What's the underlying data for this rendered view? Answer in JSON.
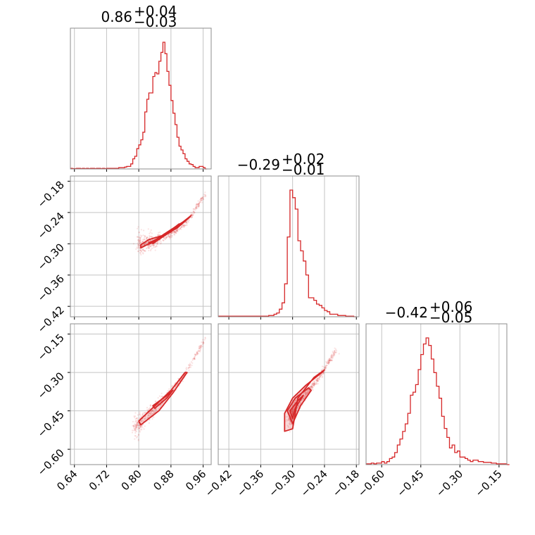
{
  "colors": {
    "accent": "#d62728",
    "grid": "#c4c4c4",
    "frame": "#8c8c8c"
  },
  "chart_data": [
    {
      "type": "histogram",
      "panel": "diag-0",
      "title": {
        "median": "0.86",
        "plus": "+0.04",
        "minus": "−0.03"
      },
      "x": [
        0.63,
        0.635,
        0.64,
        0.645,
        0.65,
        0.655,
        0.66,
        0.665,
        0.67,
        0.675,
        0.68,
        0.685,
        0.69,
        0.695,
        0.7,
        0.705,
        0.71,
        0.715,
        0.72,
        0.725,
        0.73,
        0.735,
        0.74,
        0.745,
        0.75,
        0.755,
        0.76,
        0.765,
        0.77,
        0.775,
        0.78,
        0.785,
        0.79,
        0.795,
        0.8,
        0.805,
        0.81,
        0.815,
        0.82,
        0.825,
        0.83,
        0.835,
        0.84,
        0.845,
        0.85,
        0.855,
        0.86,
        0.865,
        0.87,
        0.875,
        0.88,
        0.885,
        0.89,
        0.895,
        0.9,
        0.905,
        0.91,
        0.915,
        0.92,
        0.925,
        0.93,
        0.935,
        0.94,
        0.945,
        0.95,
        0.955,
        0.96,
        0.965
      ],
      "values": [
        0.5,
        0.3,
        0.3,
        0.5,
        0.5,
        0.3,
        0.5,
        0.3,
        0.5,
        0.3,
        0.5,
        0.5,
        0.3,
        0.5,
        0.5,
        0.3,
        0.5,
        0.3,
        0.5,
        0.5,
        0.5,
        0.5,
        0.5,
        0.5,
        1,
        1,
        1,
        1.5,
        2,
        2,
        4,
        8,
        10,
        16,
        19,
        23,
        29,
        45,
        55,
        60,
        60,
        73,
        76,
        75,
        85,
        92,
        100,
        91,
        77,
        66,
        54,
        44,
        35,
        25,
        18,
        15,
        12,
        8,
        6,
        4,
        3.5,
        2,
        1,
        1,
        2,
        2,
        1,
        0
      ],
      "xlim": [
        0.63,
        0.98
      ],
      "xticks": [
        0.64,
        0.72,
        0.8,
        0.88,
        0.96
      ],
      "xtick_labels": [
        "0.64",
        "0.72",
        "0.80",
        "0.88",
        "0.96"
      ]
    },
    {
      "type": "scatter-contour",
      "panel": "row1-col0",
      "x_param": 0,
      "y_param": 1,
      "xlim": [
        0.63,
        0.98
      ],
      "ylim": [
        -0.44,
        -0.17
      ],
      "yticks": [
        -0.18,
        -0.24,
        -0.3,
        -0.36,
        -0.42
      ],
      "ytick_labels": [
        "−0.18",
        "−0.24",
        "−0.30",
        "−0.36",
        "−0.42"
      ],
      "ridge": {
        "x": [
          0.8,
          0.84,
          0.88,
          0.92,
          0.965
        ],
        "y": [
          -0.302,
          -0.296,
          -0.282,
          -0.258,
          -0.205
        ]
      },
      "contour_levels": [
        {
          "x": [
            0.805,
            0.825,
            0.86,
            0.895,
            0.925,
            0.93,
            0.91,
            0.87,
            0.835,
            0.805
          ],
          "y": [
            -0.302,
            -0.292,
            -0.284,
            -0.27,
            -0.25,
            -0.246,
            -0.258,
            -0.278,
            -0.296,
            -0.308
          ]
        },
        {
          "x": [
            0.84,
            0.88,
            0.905,
            0.9,
            0.865,
            0.835
          ],
          "y": [
            -0.293,
            -0.277,
            -0.262,
            -0.262,
            -0.283,
            -0.3
          ]
        },
        {
          "x": [
            0.825,
            0.855,
            0.88,
            0.875,
            0.845,
            0.825
          ],
          "y": [
            -0.298,
            -0.288,
            -0.275,
            -0.279,
            -0.294,
            -0.301
          ]
        }
      ]
    },
    {
      "type": "histogram",
      "panel": "diag-1",
      "title": {
        "median": "−0.29",
        "plus": "+0.02",
        "minus": "−0.01"
      },
      "x": [
        -0.44,
        -0.435,
        -0.43,
        -0.425,
        -0.42,
        -0.415,
        -0.41,
        -0.405,
        -0.4,
        -0.395,
        -0.39,
        -0.385,
        -0.38,
        -0.375,
        -0.37,
        -0.365,
        -0.36,
        -0.355,
        -0.35,
        -0.345,
        -0.34,
        -0.335,
        -0.33,
        -0.325,
        -0.32,
        -0.315,
        -0.31,
        -0.305,
        -0.3,
        -0.295,
        -0.29,
        -0.285,
        -0.28,
        -0.275,
        -0.27,
        -0.265,
        -0.26,
        -0.255,
        -0.25,
        -0.245,
        -0.24,
        -0.235,
        -0.23,
        -0.225,
        -0.22,
        -0.215,
        -0.21,
        -0.205,
        -0.2,
        -0.195,
        -0.19,
        -0.185
      ],
      "values": [
        0.5,
        0.5,
        0.5,
        0.5,
        0.5,
        0.5,
        0.5,
        0.5,
        0.5,
        0.5,
        0.5,
        0.5,
        0.5,
        0.5,
        0.5,
        0.5,
        0.5,
        0.5,
        0.5,
        1,
        1,
        2,
        3,
        6,
        11,
        26,
        63,
        100,
        94,
        85,
        60,
        52,
        44,
        33,
        15,
        15,
        13,
        10,
        9,
        7,
        5,
        4,
        2,
        2,
        2,
        1,
        1,
        1,
        0.5,
        0.5,
        0.5,
        0
      ],
      "xlim": [
        -0.44,
        -0.175
      ],
      "xticks": [
        -0.42,
        -0.36,
        -0.3,
        -0.24,
        -0.18
      ],
      "xtick_labels": [
        "−0.42",
        "−0.36",
        "−0.30",
        "−0.24",
        "−0.18"
      ]
    },
    {
      "type": "scatter-contour",
      "panel": "row2-col0",
      "x_param": 0,
      "y_param": 2,
      "xlim": [
        0.63,
        0.98
      ],
      "ylim": [
        -0.66,
        -0.11
      ],
      "yticks": [
        -0.15,
        -0.3,
        -0.45,
        -0.6
      ],
      "ytick_labels": [
        "−0.15",
        "−0.30",
        "−0.45",
        "−0.60"
      ],
      "ridge": {
        "x": [
          0.79,
          0.83,
          0.87,
          0.91,
          0.965
        ],
        "y": [
          -0.515,
          -0.46,
          -0.39,
          -0.32,
          -0.17
        ]
      },
      "contour_levels": [
        {
          "x": [
            0.8,
            0.84,
            0.88,
            0.915,
            0.92,
            0.885,
            0.85,
            0.805
          ],
          "y": [
            -0.49,
            -0.43,
            -0.37,
            -0.3,
            -0.3,
            -0.38,
            -0.45,
            -0.505
          ]
        },
        {
          "x": [
            0.835,
            0.87,
            0.885,
            0.87,
            0.84
          ],
          "y": [
            -0.43,
            -0.39,
            -0.37,
            -0.4,
            -0.44
          ]
        }
      ]
    },
    {
      "type": "scatter-contour",
      "panel": "row2-col1",
      "x_param": 1,
      "y_param": 2,
      "xlim": [
        -0.44,
        -0.175
      ],
      "ylim": [
        -0.66,
        -0.11
      ],
      "ridge": {
        "x": [
          -0.305,
          -0.29,
          -0.27,
          -0.25,
          -0.22
        ],
        "y": [
          -0.49,
          -0.42,
          -0.37,
          -0.32,
          -0.22
        ]
      },
      "contour_levels": [
        {
          "x": [
            -0.315,
            -0.3,
            -0.275,
            -0.245,
            -0.24,
            -0.26,
            -0.29,
            -0.3,
            -0.315
          ],
          "y": [
            -0.46,
            -0.4,
            -0.35,
            -0.3,
            -0.29,
            -0.32,
            -0.4,
            -0.52,
            -0.53
          ]
        },
        {
          "x": [
            -0.31,
            -0.295,
            -0.27,
            -0.265,
            -0.285,
            -0.3
          ],
          "y": [
            -0.45,
            -0.4,
            -0.36,
            -0.37,
            -0.43,
            -0.5
          ]
        },
        {
          "x": [
            -0.305,
            -0.29,
            -0.28,
            -0.295,
            -0.3
          ],
          "y": [
            -0.45,
            -0.41,
            -0.39,
            -0.44,
            -0.48
          ]
        }
      ]
    },
    {
      "type": "histogram",
      "panel": "diag-2",
      "title": {
        "median": "−0.42",
        "plus": "+0.06",
        "minus": "−0.05"
      },
      "x": [
        -0.66,
        -0.65,
        -0.64,
        -0.63,
        -0.62,
        -0.61,
        -0.6,
        -0.59,
        -0.58,
        -0.57,
        -0.56,
        -0.55,
        -0.54,
        -0.53,
        -0.52,
        -0.51,
        -0.5,
        -0.49,
        -0.48,
        -0.47,
        -0.46,
        -0.45,
        -0.44,
        -0.43,
        -0.42,
        -0.41,
        -0.4,
        -0.39,
        -0.38,
        -0.37,
        -0.36,
        -0.35,
        -0.34,
        -0.33,
        -0.32,
        -0.31,
        -0.3,
        -0.29,
        -0.28,
        -0.27,
        -0.26,
        -0.25,
        -0.24,
        -0.23,
        -0.22,
        -0.21,
        -0.2,
        -0.19,
        -0.18,
        -0.17,
        -0.16,
        -0.15,
        -0.14,
        -0.13,
        -0.12
      ],
      "values": [
        0.5,
        0.5,
        1,
        0.5,
        1,
        1,
        2,
        1,
        2,
        4,
        5,
        8,
        13,
        17,
        22,
        27,
        34,
        46,
        48,
        53,
        63,
        73,
        80,
        84,
        79,
        70,
        61,
        52,
        44,
        32,
        24,
        18,
        11,
        13,
        8,
        9,
        5,
        5,
        4,
        3,
        2,
        3,
        3,
        2,
        2,
        1.5,
        1.5,
        1.5,
        1,
        1,
        0.5,
        0.5,
        0.5,
        0.5,
        0
      ],
      "xlim": [
        -0.66,
        -0.12
      ],
      "xticks": [
        -0.6,
        -0.45,
        -0.3,
        -0.15
      ],
      "xtick_labels": [
        "−0.60",
        "−0.45",
        "−0.30",
        "−0.15"
      ]
    }
  ]
}
